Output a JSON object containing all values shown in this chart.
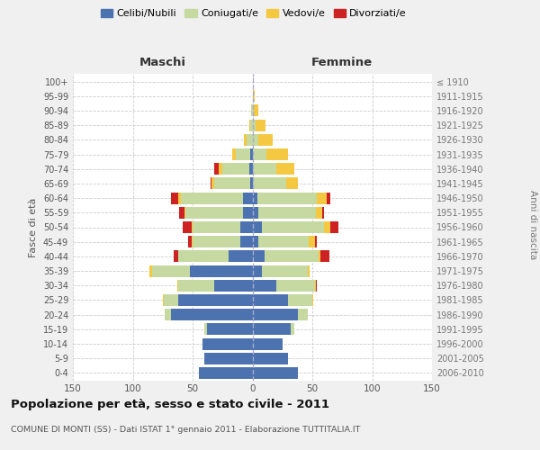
{
  "age_groups": [
    "0-4",
    "5-9",
    "10-14",
    "15-19",
    "20-24",
    "25-29",
    "30-34",
    "35-39",
    "40-44",
    "45-49",
    "50-54",
    "55-59",
    "60-64",
    "65-69",
    "70-74",
    "75-79",
    "80-84",
    "85-89",
    "90-94",
    "95-99",
    "100+"
  ],
  "birth_years": [
    "2006-2010",
    "2001-2005",
    "1996-2000",
    "1991-1995",
    "1986-1990",
    "1981-1985",
    "1976-1980",
    "1971-1975",
    "1966-1970",
    "1961-1965",
    "1956-1960",
    "1951-1955",
    "1946-1950",
    "1941-1945",
    "1936-1940",
    "1931-1935",
    "1926-1930",
    "1921-1925",
    "1916-1920",
    "1911-1915",
    "≤ 1910"
  ],
  "maschi": {
    "celibi": [
      45,
      40,
      42,
      38,
      68,
      62,
      32,
      52,
      20,
      10,
      10,
      8,
      8,
      2,
      3,
      2,
      0,
      0,
      0,
      0,
      0
    ],
    "coniugati": [
      0,
      0,
      0,
      2,
      5,
      12,
      30,
      32,
      42,
      40,
      40,
      48,
      52,
      30,
      22,
      12,
      5,
      2,
      1,
      0,
      0
    ],
    "vedovi": [
      0,
      0,
      0,
      0,
      0,
      1,
      1,
      2,
      0,
      1,
      1,
      1,
      2,
      2,
      3,
      3,
      2,
      1,
      0,
      0,
      0
    ],
    "divorziati": [
      0,
      0,
      0,
      0,
      0,
      0,
      0,
      0,
      4,
      3,
      7,
      4,
      6,
      1,
      4,
      0,
      0,
      0,
      0,
      0,
      0
    ]
  },
  "femmine": {
    "nubili": [
      38,
      30,
      25,
      32,
      38,
      30,
      20,
      8,
      10,
      5,
      8,
      5,
      4,
      0,
      0,
      0,
      0,
      0,
      0,
      0,
      0
    ],
    "coniugate": [
      0,
      0,
      0,
      3,
      8,
      20,
      32,
      38,
      45,
      42,
      52,
      48,
      50,
      28,
      20,
      12,
      5,
      3,
      1,
      0,
      0
    ],
    "vedove": [
      0,
      0,
      0,
      0,
      0,
      1,
      1,
      2,
      2,
      5,
      5,
      5,
      8,
      10,
      15,
      18,
      12,
      8,
      4,
      2,
      0
    ],
    "divorziate": [
      0,
      0,
      0,
      0,
      0,
      0,
      1,
      0,
      7,
      2,
      7,
      2,
      3,
      0,
      0,
      0,
      0,
      0,
      0,
      0,
      0
    ]
  },
  "colors": {
    "celibi": "#4c72b0",
    "coniugati": "#c5d9a0",
    "vedovi": "#f5c842",
    "divorziati": "#cc2222"
  },
  "xlim": 150,
  "title": "Popolazione per età, sesso e stato civile - 2011",
  "subtitle": "COMUNE DI MONTI (SS) - Dati ISTAT 1° gennaio 2011 - Elaborazione TUTTITALIA.IT",
  "ylabel_left": "Fasce di età",
  "ylabel_right": "Anni di nascita",
  "xlabel_left": "Maschi",
  "xlabel_right": "Femmine",
  "bg_color": "#f0f0f0",
  "plot_bg_color": "#ffffff"
}
